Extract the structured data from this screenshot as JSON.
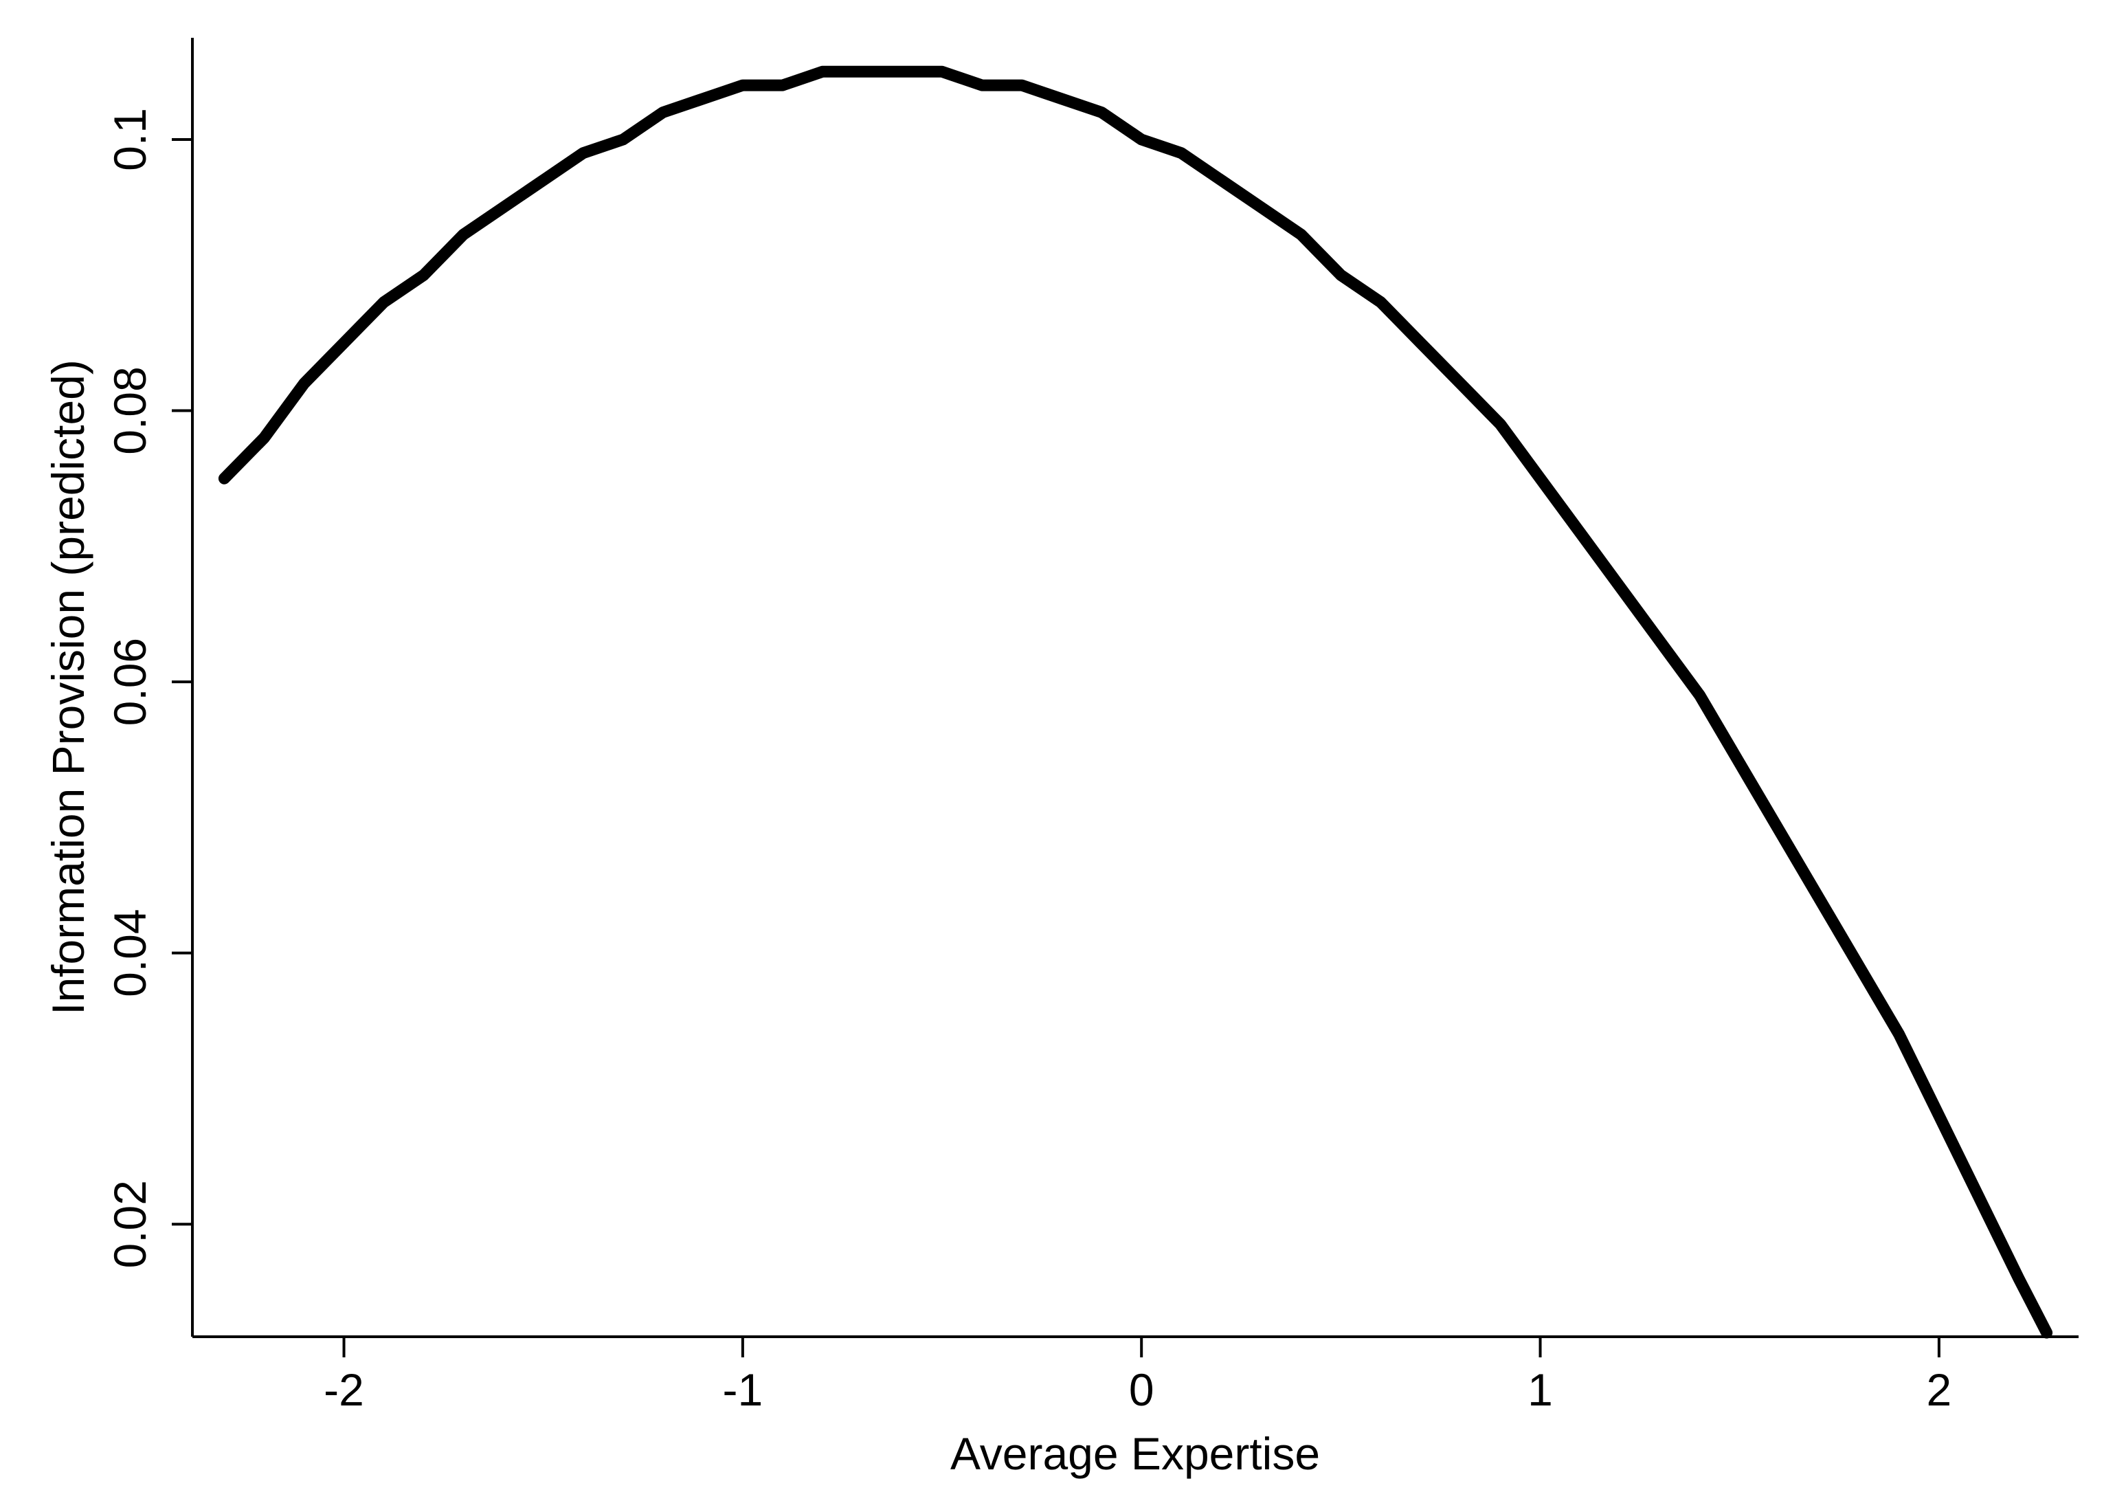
{
  "chart_data": {
    "type": "line",
    "title": "",
    "xlabel": "Average Expertise",
    "ylabel": "Information Provision (predicted)",
    "xlim": [
      -2.38,
      2.35
    ],
    "ylim": [
      0.0117,
      0.1075
    ],
    "grid": false,
    "x_ticks": [
      -2,
      -1,
      0,
      1,
      2
    ],
    "x_tick_labels": [
      "-2",
      "-1",
      "0",
      "1",
      "2"
    ],
    "y_ticks": [
      0.02,
      0.04,
      0.06,
      0.08,
      0.1
    ],
    "y_tick_labels": [
      "0.02",
      "0.04",
      "0.06",
      "0.08",
      "0.1"
    ],
    "series": [
      {
        "color": "#000000",
        "x": [
          -2.3,
          -2.2,
          -2.1,
          -2.0,
          -1.9,
          -1.8,
          -1.7,
          -1.6,
          -1.5,
          -1.4,
          -1.3,
          -1.2,
          -1.1,
          -1.0,
          -0.9,
          -0.8,
          -0.7,
          -0.6,
          -0.5,
          -0.4,
          -0.3,
          -0.2,
          -0.1,
          0.0,
          0.1,
          0.2,
          0.3,
          0.4,
          0.5,
          0.6,
          0.7,
          0.8,
          0.9,
          1.0,
          1.1,
          1.2,
          1.3,
          1.4,
          1.5,
          1.6,
          1.7,
          1.8,
          1.9,
          2.0,
          2.1,
          2.2,
          2.27
        ],
        "values": [
          0.075,
          0.078,
          0.082,
          0.085,
          0.088,
          0.09,
          0.093,
          0.095,
          0.097,
          0.099,
          0.1,
          0.102,
          0.103,
          0.104,
          0.104,
          0.105,
          0.105,
          0.105,
          0.105,
          0.104,
          0.104,
          0.103,
          0.102,
          0.1,
          0.099,
          0.097,
          0.095,
          0.093,
          0.09,
          0.088,
          0.085,
          0.082,
          0.079,
          0.075,
          0.071,
          0.067,
          0.063,
          0.059,
          0.054,
          0.049,
          0.044,
          0.039,
          0.034,
          0.028,
          0.022,
          0.016,
          0.012
        ]
      }
    ]
  }
}
